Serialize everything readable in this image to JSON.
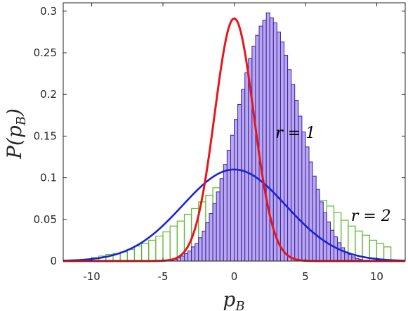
{
  "chart_data": {
    "type": "bar",
    "xlabel": "p_B",
    "ylabel": "P(p_B)",
    "xlim": [
      -12,
      12
    ],
    "ylim": [
      0,
      0.31
    ],
    "xticks": [
      -10,
      -5,
      0,
      5,
      10
    ],
    "xtick_labels": [
      "-10",
      "-5",
      "0",
      "5",
      "10"
    ],
    "yticks": [
      0,
      0.05,
      0.1,
      0.15,
      0.2,
      0.25,
      0.3
    ],
    "ytick_labels": [
      "0",
      "0.05",
      "0.1",
      "0.15",
      "0.2",
      "0.25",
      "0.3"
    ],
    "annotations": [
      {
        "text": "r = 1",
        "x": 4.3,
        "y": 0.148
      },
      {
        "text": "r = 2",
        "x": 9.6,
        "y": 0.048
      }
    ],
    "histograms": [
      {
        "r": 1,
        "color": "#3b1fa8",
        "fill": "#b9a8ee",
        "bin_width": 0.25,
        "x_start": -4.5,
        "values": [
          0.001,
          0.002,
          0.004,
          0.006,
          0.009,
          0.012,
          0.017,
          0.021,
          0.028,
          0.036,
          0.046,
          0.057,
          0.069,
          0.083,
          0.099,
          0.116,
          0.133,
          0.151,
          0.17,
          0.188,
          0.206,
          0.226,
          0.243,
          0.258,
          0.271,
          0.282,
          0.289,
          0.298,
          0.292,
          0.286,
          0.275,
          0.263,
          0.247,
          0.23,
          0.212,
          0.193,
          0.174,
          0.155,
          0.137,
          0.119,
          0.102,
          0.086,
          0.071,
          0.058,
          0.047,
          0.037,
          0.029,
          0.022,
          0.016,
          0.011,
          0.008,
          0.005,
          0.003,
          0.002,
          0.001,
          0.001
        ]
      },
      {
        "r": 2,
        "color": "#5cb82e",
        "bin_width": 0.5,
        "x_start": -10,
        "values": [
          0.004,
          0.006,
          0.008,
          0.009,
          0.011,
          0.014,
          0.018,
          0.021,
          0.025,
          0.03,
          0.035,
          0.042,
          0.048,
          0.056,
          0.063,
          0.071,
          0.079,
          0.088,
          0.094,
          0.101,
          0.104,
          0.112,
          0.099,
          0.104,
          0.109,
          0.112,
          0.11,
          0.103,
          0.103,
          0.095,
          0.086,
          0.081,
          0.073,
          0.066,
          0.058,
          0.049,
          0.042,
          0.036,
          0.031,
          0.025,
          0.021,
          0.017
        ]
      }
    ],
    "curves": [
      {
        "r": 1,
        "color": "#e8151b",
        "type": "gaussian",
        "mean": 0,
        "sigma": 1.37
      },
      {
        "r": 2,
        "color": "#1a22d8",
        "type": "gaussian",
        "mean": 0,
        "sigma": 3.63
      }
    ]
  }
}
